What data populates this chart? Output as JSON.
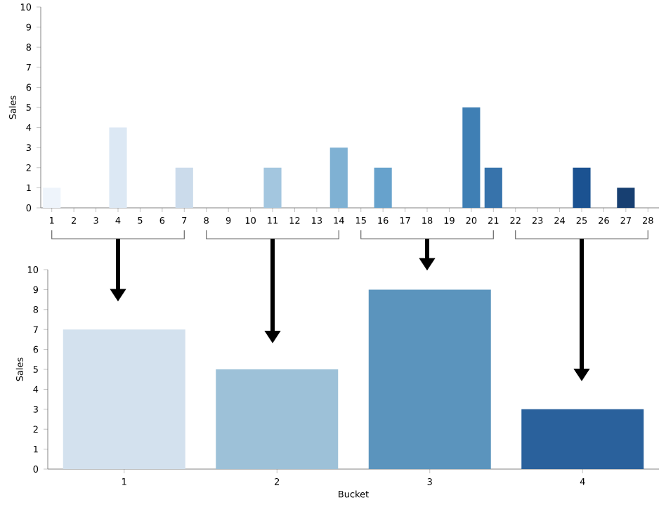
{
  "chart_data": [
    {
      "type": "bar",
      "ylabel": "Sales",
      "categories": [
        "1",
        "2",
        "3",
        "4",
        "5",
        "6",
        "7",
        "8",
        "9",
        "10",
        "11",
        "12",
        "13",
        "14",
        "15",
        "16",
        "17",
        "18",
        "19",
        "20",
        "21",
        "22",
        "23",
        "24",
        "25",
        "26",
        "27",
        "28"
      ],
      "values": [
        1,
        0,
        0,
        4,
        0,
        0,
        2,
        0,
        0,
        0,
        2,
        0,
        0,
        3,
        0,
        2,
        0,
        0,
        0,
        5,
        2,
        0,
        0,
        0,
        2,
        0,
        1,
        0
      ],
      "colors": [
        "#eef4fb",
        "#e8f0f9",
        "#e2ecf6",
        "#dce8f4",
        "#d6e4f1",
        "#d1dfee",
        "#cbdbeb",
        "#c3d6ea",
        "#b8d1e7",
        "#acc9e3",
        "#a3c6df",
        "#96bfdc",
        "#89b8d7",
        "#7fb1d3",
        "#72a9cf",
        "#67a2cc",
        "#5c99c6",
        "#5190c0",
        "#4787ba",
        "#3f7fb4",
        "#3773ab",
        "#2e68a3",
        "#265e9c",
        "#1f5596",
        "#1b5291",
        "#194a83",
        "#173f71",
        "#133560"
      ],
      "ylim": [
        0,
        10
      ],
      "yticks": [
        0,
        1,
        2,
        3,
        4,
        5,
        6,
        7,
        8,
        9,
        10
      ]
    },
    {
      "type": "bar",
      "xlabel": "Bucket",
      "ylabel": "Sales",
      "categories": [
        "1",
        "2",
        "3",
        "4"
      ],
      "values": [
        7,
        5,
        9,
        3
      ],
      "colors": [
        "#d3e1ee",
        "#9dc1d8",
        "#5b94bd",
        "#2a619c"
      ],
      "ylim": [
        0,
        10
      ],
      "yticks": [
        0,
        1,
        2,
        3,
        4,
        5,
        6,
        7,
        8,
        9,
        10
      ]
    }
  ]
}
